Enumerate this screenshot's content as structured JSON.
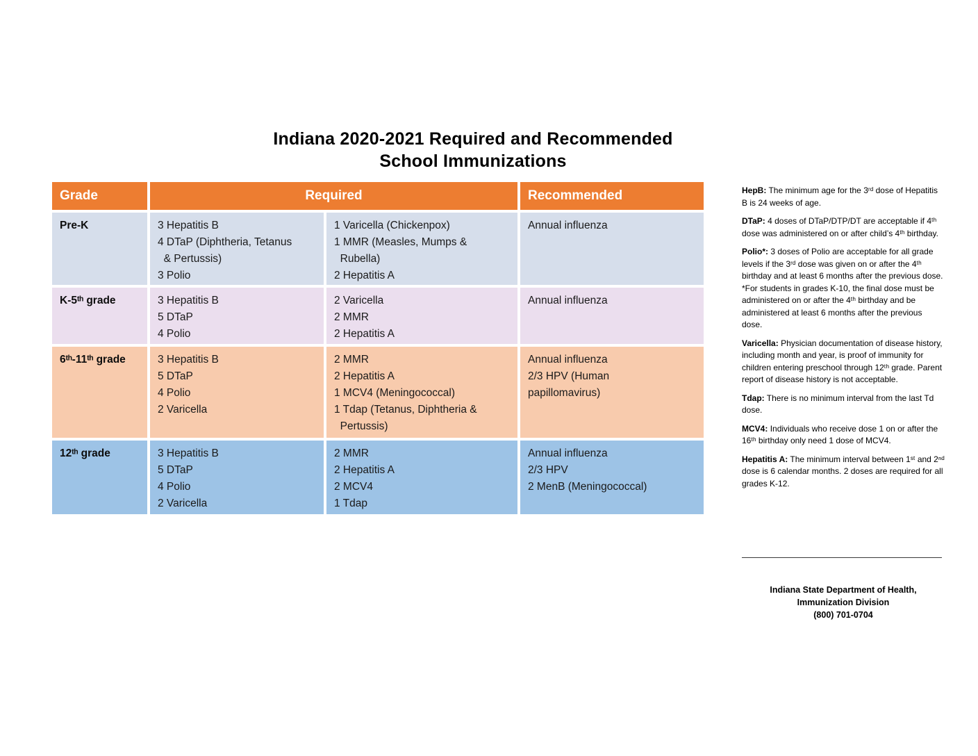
{
  "title": {
    "line1": "Indiana 2020-2021 Required and Recommended",
    "line2": "School Immunizations"
  },
  "table": {
    "header_color": "#ED7D31",
    "headers": {
      "grade": "Grade",
      "required": "Required",
      "recommended": "Recommended"
    },
    "rows": [
      {
        "grade": "Pre-K",
        "row_color": "#D6DEEB",
        "required_col1": [
          "3 Hepatitis B",
          "4 DTaP (Diphtheria, Tetanus",
          "  & Pertussis)",
          "3 Polio"
        ],
        "required_col2": [
          "1 Varicella (Chickenpox)",
          "1 MMR (Measles, Mumps &",
          "  Rubella)",
          "2 Hepatitis A"
        ],
        "recommended": [
          "Annual influenza"
        ]
      },
      {
        "grade": "K-5ᵗʰ grade",
        "row_color": "#EBDEEE",
        "required_col1": [
          "3 Hepatitis B",
          "5 DTaP",
          "4 Polio"
        ],
        "required_col2": [
          "2 Varicella",
          "2 MMR",
          "2 Hepatitis A"
        ],
        "recommended": [
          "Annual influenza"
        ]
      },
      {
        "grade": "6ᵗʰ-11ᵗʰ grade",
        "row_color": "#F8CBAD",
        "required_col1": [
          "3 Hepatitis B",
          "5 DTaP",
          "4 Polio",
          "2 Varicella"
        ],
        "required_col2": [
          "2 MMR",
          "2 Hepatitis A",
          "1 MCV4 (Meningococcal)",
          "1 Tdap (Tetanus, Diphtheria &",
          "  Pertussis)"
        ],
        "recommended": [
          "Annual influenza",
          "2/3 HPV (Human",
          "papillomavirus)"
        ]
      },
      {
        "grade": "12ᵗʰ grade",
        "row_color": "#9DC3E6",
        "required_col1": [
          "3 Hepatitis B",
          "5 DTaP",
          "4 Polio",
          "2 Varicella"
        ],
        "required_col2": [
          "2 MMR",
          "2 Hepatitis A",
          "2 MCV4",
          "1 Tdap"
        ],
        "recommended": [
          "Annual influenza",
          "2/3 HPV",
          "2 MenB (Meningococcal)"
        ]
      }
    ]
  },
  "notes": [
    {
      "label": "HepB:",
      "text": "The minimum age for the 3ʳᵈ dose of Hepatitis B is 24 weeks of age."
    },
    {
      "label": "DTaP:",
      "text": "4 doses of DTaP/DTP/DT are acceptable if 4ᵗʰ dose was administered on or after child’s 4ᵗʰ birthday."
    },
    {
      "label": "Polio*:",
      "text": "3 doses of Polio are acceptable for all grade levels if the 3ʳᵈ dose was given on or after the 4ᵗʰ birthday and at least 6 months after the previous dose.",
      "extra": "*For students in grades K-10, the final dose must be administered on or after the 4ᵗʰ birthday and be administered at least 6 months after the previous dose."
    },
    {
      "label": "Varicella:",
      "text": "Physician documentation of disease history, including month and year, is proof of immunity for children entering preschool through 12ᵗʰ grade. Parent report of disease history is not acceptable."
    },
    {
      "label": "Tdap:",
      "text": "There is no minimum interval from the last Td dose."
    },
    {
      "label": "MCV4:",
      "text": "Individuals who receive dose 1 on or after the 16ᵗʰ birthday only need 1 dose of MCV4."
    },
    {
      "label": "Hepatitis A:",
      "text": "The minimum interval between 1ˢᵗ and 2ⁿᵈ dose is 6 calendar months. 2 doses are required for all grades K-12."
    }
  ],
  "footer": {
    "line1": "Indiana State Department of Health,",
    "line2": "Immunization Division",
    "line3": "(800) 701-0704"
  }
}
